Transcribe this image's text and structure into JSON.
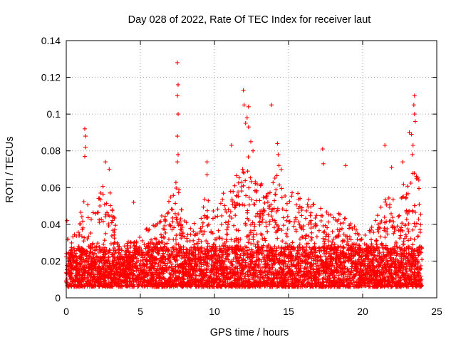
{
  "chart_data": {
    "type": "scatter",
    "title": "Day 028 of 2022, Rate Of TEC Index for receiver laut",
    "xlabel": "GPS time / hours",
    "ylabel": "ROTI / TECUs",
    "xlim": [
      0,
      25
    ],
    "ylim": [
      0,
      0.14
    ],
    "xticks": [
      "0",
      "5",
      "10",
      "15",
      "20",
      "25"
    ],
    "yticks": [
      "0",
      "0.02",
      "0.04",
      "0.06",
      "0.08",
      "0.1",
      "0.12",
      "0.14"
    ],
    "grid": true,
    "marker": "+",
    "color": "#ff0000",
    "series": [
      {
        "envelope": [
          [
            0.0,
            0.032
          ],
          [
            0.5,
            0.036
          ],
          [
            1.0,
            0.05
          ],
          [
            1.3,
            0.06
          ],
          [
            1.6,
            0.045
          ],
          [
            2.0,
            0.05
          ],
          [
            2.5,
            0.065
          ],
          [
            3.0,
            0.06
          ],
          [
            3.5,
            0.03
          ],
          [
            4.0,
            0.03
          ],
          [
            4.5,
            0.032
          ],
          [
            5.0,
            0.035
          ],
          [
            5.5,
            0.04
          ],
          [
            6.0,
            0.04
          ],
          [
            6.5,
            0.05
          ],
          [
            7.0,
            0.055
          ],
          [
            7.5,
            0.065
          ],
          [
            8.0,
            0.045
          ],
          [
            8.5,
            0.04
          ],
          [
            9.0,
            0.05
          ],
          [
            9.5,
            0.06
          ],
          [
            10.0,
            0.045
          ],
          [
            10.5,
            0.055
          ],
          [
            11.0,
            0.065
          ],
          [
            11.5,
            0.07
          ],
          [
            12.0,
            0.09
          ],
          [
            12.5,
            0.075
          ],
          [
            13.0,
            0.06
          ],
          [
            13.5,
            0.07
          ],
          [
            14.0,
            0.065
          ],
          [
            14.5,
            0.07
          ],
          [
            15.0,
            0.055
          ],
          [
            15.5,
            0.06
          ],
          [
            16.0,
            0.05
          ],
          [
            16.5,
            0.055
          ],
          [
            17.0,
            0.05
          ],
          [
            17.5,
            0.048
          ],
          [
            18.0,
            0.045
          ],
          [
            18.5,
            0.05
          ],
          [
            19.0,
            0.045
          ],
          [
            19.5,
            0.04
          ],
          [
            20.0,
            0.035
          ],
          [
            20.5,
            0.038
          ],
          [
            21.0,
            0.05
          ],
          [
            21.5,
            0.06
          ],
          [
            22.0,
            0.055
          ],
          [
            22.5,
            0.06
          ],
          [
            23.0,
            0.065
          ],
          [
            23.5,
            0.07
          ],
          [
            24.0,
            0.06
          ]
        ],
        "outliers": [
          [
            0.05,
            0.042
          ],
          [
            1.25,
            0.092
          ],
          [
            1.3,
            0.088
          ],
          [
            1.3,
            0.082
          ],
          [
            1.25,
            0.077
          ],
          [
            2.65,
            0.074
          ],
          [
            2.9,
            0.07
          ],
          [
            4.55,
            0.052
          ],
          [
            7.5,
            0.128
          ],
          [
            7.55,
            0.116
          ],
          [
            7.5,
            0.11
          ],
          [
            7.55,
            0.1
          ],
          [
            7.5,
            0.088
          ],
          [
            7.55,
            0.078
          ],
          [
            7.5,
            0.074
          ],
          [
            9.5,
            0.074
          ],
          [
            9.5,
            0.067
          ],
          [
            11.15,
            0.083
          ],
          [
            11.95,
            0.113
          ],
          [
            12.0,
            0.105
          ],
          [
            12.3,
            0.104
          ],
          [
            12.2,
            0.098
          ],
          [
            12.1,
            0.095
          ],
          [
            12.3,
            0.093
          ],
          [
            12.45,
            0.085
          ],
          [
            12.6,
            0.08
          ],
          [
            13.85,
            0.105
          ],
          [
            14.25,
            0.084
          ],
          [
            14.3,
            0.078
          ],
          [
            14.35,
            0.072
          ],
          [
            17.3,
            0.081
          ],
          [
            17.35,
            0.073
          ],
          [
            18.85,
            0.072
          ],
          [
            21.5,
            0.083
          ],
          [
            21.95,
            0.071
          ],
          [
            22.7,
            0.074
          ],
          [
            23.15,
            0.09
          ],
          [
            23.3,
            0.089
          ],
          [
            23.5,
            0.11
          ],
          [
            23.45,
            0.105
          ],
          [
            23.5,
            0.1
          ],
          [
            23.55,
            0.096
          ],
          [
            23.4,
            0.083
          ],
          [
            23.35,
            0.078
          ]
        ]
      }
    ]
  }
}
